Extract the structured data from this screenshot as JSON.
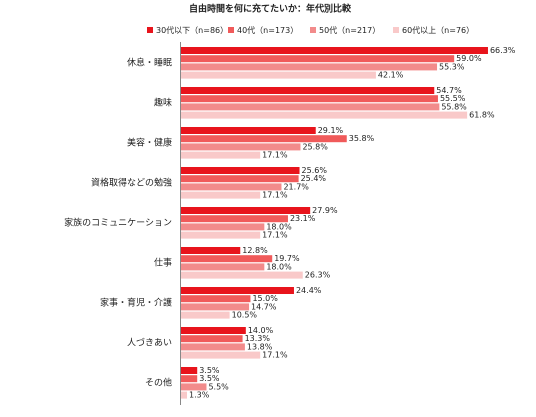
{
  "chart_data": {
    "type": "hbar",
    "title": "自由時間を何に充てたいか：年代別比較",
    "categories": [
      "休息・睡眠",
      "趣味",
      "美容・健康",
      "資格取得などの勉強",
      "家族のコミュニケーション",
      "仕事",
      "家事・育児・介護",
      "人づきあい",
      "その他"
    ],
    "series": [
      {
        "name": "30代以下（n=86）",
        "color": "#e8141c",
        "values": [
          66.3,
          54.7,
          29.1,
          25.6,
          27.9,
          12.8,
          24.4,
          14.0,
          3.5
        ],
        "value_labels": [
          "66.3%",
          "54.7%",
          "29.1%",
          "25.6%",
          "27.9%",
          "12.8%",
          "24.4%",
          "14.0%",
          "3.5%"
        ]
      },
      {
        "name": "40代（n=173）",
        "color": "#f05a5a",
        "values": [
          59.0,
          55.5,
          35.8,
          25.4,
          23.1,
          19.7,
          15.0,
          13.3,
          3.5
        ],
        "value_labels": [
          "59.0%",
          "55.5%",
          "35.8%",
          "25.4%",
          "23.1%",
          "19.7%",
          "15.0%",
          "13.3%",
          "3.5%"
        ]
      },
      {
        "name": "50代（n=217）",
        "color": "#f28b8b",
        "values": [
          55.3,
          55.8,
          25.8,
          21.7,
          18.0,
          18.0,
          14.7,
          13.8,
          5.5
        ],
        "value_labels": [
          "55.3%",
          "55.8%",
          "25.8%",
          "21.7%",
          "18.0%",
          "18.0%",
          "14.7%",
          "13.8%",
          "5.5%"
        ]
      },
      {
        "name": "60代以上（n=76）",
        "color": "#f9c9c9",
        "values": [
          42.1,
          61.8,
          17.1,
          17.1,
          17.1,
          26.3,
          10.5,
          17.1,
          1.3
        ],
        "value_labels": [
          "42.1%",
          "61.8%",
          "17.1%",
          "17.1%",
          "17.1%",
          "26.3%",
          "10.5%",
          "17.1%",
          "1.3%"
        ]
      }
    ]
  }
}
